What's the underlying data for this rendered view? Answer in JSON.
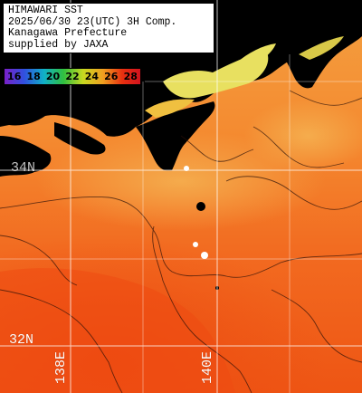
{
  "title_box": {
    "line1": "HIMAWARI SST",
    "line2": "2025/06/30 23(UTC) 3H Comp.",
    "line3": "Kanagawa Prefecture",
    "line4": "supplied by JAXA"
  },
  "legend": {
    "ticks": [
      "16",
      "18",
      "20",
      "22",
      "24",
      "26",
      "28"
    ],
    "colors": [
      "#7a20c8",
      "#3050e0",
      "#10b0c8",
      "#30c040",
      "#c8d820",
      "#f0a020",
      "#e83010",
      "#d01020"
    ]
  },
  "grid_labels": {
    "lat_34": "34N",
    "lat_32": "32N",
    "lon_138": "138E",
    "lon_140": "140E"
  },
  "colors": {
    "land": "#000000",
    "sea_warm": "#f05a18",
    "sea_mid": "#f47a28",
    "sea_cool": "#f3a040",
    "coastal_cool": "#e8e060",
    "grid": "#ffffff"
  }
}
